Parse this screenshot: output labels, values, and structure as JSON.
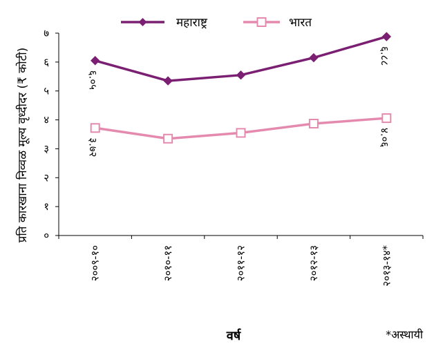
{
  "chart_data": {
    "type": "line",
    "categories": [
      "२००९-१०",
      "२०१०-११",
      "२०११-१२",
      "२०१२-१३",
      "२०१३-१४*"
    ],
    "ylabel": "प्रति कारखाना निव्वळ मूल्य वृध्दीदर (₹ कोटी)",
    "xlabel": "वर्ष",
    "note": "*अस्थायी",
    "ylim": [
      0,
      7
    ],
    "yticks": [
      0,
      1,
      2,
      3,
      4,
      5,
      6,
      7
    ],
    "ytick_labels": [
      "०",
      "१",
      "२",
      "३",
      "४",
      "५",
      "६",
      "७"
    ],
    "legend_position": "top",
    "grid": false,
    "series": [
      {
        "name": "महाराष्ट्र",
        "color": "#7b1f73",
        "marker": "filled-diamond",
        "values": [
          6.05,
          5.35,
          5.55,
          6.15,
          6.88
        ],
        "data_labels": [
          "६.०५",
          "",
          "",
          "",
          "६.८८"
        ]
      },
      {
        "name": "भारत",
        "color": "#e48aae",
        "marker": "open-square",
        "values": [
          3.72,
          3.35,
          3.55,
          3.87,
          4.06
        ],
        "data_labels": [
          "३.७२",
          "",
          "",
          "",
          "४.०६"
        ]
      }
    ]
  }
}
